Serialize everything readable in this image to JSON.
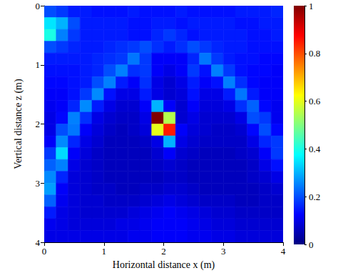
{
  "chart_data": {
    "type": "heatmap",
    "x_label": "Horizontal distance x (m)",
    "y_label": "Vertical distance z (m)",
    "x": [
      0.1,
      0.3,
      0.5,
      0.7,
      0.9,
      1.1,
      1.3,
      1.5,
      1.7,
      1.9,
      2.1,
      2.3,
      2.5,
      2.7,
      2.9,
      3.1,
      3.3,
      3.5,
      3.7,
      3.9
    ],
    "y": [
      0.1,
      0.3,
      0.5,
      0.7,
      0.9,
      1.1,
      1.3,
      1.5,
      1.7,
      1.9,
      2.1,
      2.3,
      2.5,
      2.7,
      2.9,
      3.1,
      3.3,
      3.5,
      3.7,
      3.9
    ],
    "values": [
      [
        0.2,
        0.18,
        0.15,
        0.15,
        0.14,
        0.14,
        0.14,
        0.15,
        0.14,
        0.14,
        0.14,
        0.15,
        0.14,
        0.14,
        0.14,
        0.14,
        0.15,
        0.15,
        0.15,
        0.16
      ],
      [
        0.35,
        0.3,
        0.2,
        0.15,
        0.15,
        0.15,
        0.15,
        0.14,
        0.14,
        0.15,
        0.15,
        0.14,
        0.15,
        0.15,
        0.15,
        0.15,
        0.14,
        0.14,
        0.15,
        0.15
      ],
      [
        0.4,
        0.25,
        0.18,
        0.15,
        0.15,
        0.15,
        0.15,
        0.14,
        0.14,
        0.16,
        0.18,
        0.16,
        0.14,
        0.15,
        0.15,
        0.15,
        0.15,
        0.14,
        0.14,
        0.15
      ],
      [
        0.2,
        0.18,
        0.16,
        0.15,
        0.15,
        0.16,
        0.17,
        0.18,
        0.2,
        0.17,
        0.15,
        0.17,
        0.2,
        0.18,
        0.16,
        0.15,
        0.15,
        0.14,
        0.14,
        0.14
      ],
      [
        0.15,
        0.15,
        0.15,
        0.15,
        0.16,
        0.17,
        0.18,
        0.24,
        0.18,
        0.12,
        0.12,
        0.12,
        0.16,
        0.24,
        0.18,
        0.15,
        0.14,
        0.14,
        0.13,
        0.13
      ],
      [
        0.14,
        0.14,
        0.14,
        0.15,
        0.16,
        0.2,
        0.25,
        0.17,
        0.18,
        0.12,
        0.1,
        0.12,
        0.18,
        0.14,
        0.25,
        0.18,
        0.14,
        0.13,
        0.13,
        0.12
      ],
      [
        0.13,
        0.13,
        0.14,
        0.15,
        0.2,
        0.25,
        0.15,
        0.12,
        0.17,
        0.1,
        0.08,
        0.1,
        0.15,
        0.12,
        0.14,
        0.25,
        0.17,
        0.13,
        0.12,
        0.12
      ],
      [
        0.12,
        0.12,
        0.14,
        0.18,
        0.26,
        0.14,
        0.1,
        0.1,
        0.15,
        0.1,
        0.08,
        0.09,
        0.14,
        0.1,
        0.1,
        0.15,
        0.24,
        0.15,
        0.12,
        0.12
      ],
      [
        0.11,
        0.12,
        0.16,
        0.26,
        0.15,
        0.1,
        0.08,
        0.08,
        0.12,
        0.3,
        0.12,
        0.08,
        0.12,
        0.09,
        0.09,
        0.1,
        0.17,
        0.22,
        0.13,
        0.11
      ],
      [
        0.1,
        0.13,
        0.25,
        0.17,
        0.1,
        0.08,
        0.07,
        0.07,
        0.1,
        1.0,
        0.55,
        0.08,
        0.1,
        0.08,
        0.08,
        0.08,
        0.1,
        0.2,
        0.18,
        0.11
      ],
      [
        0.1,
        0.2,
        0.24,
        0.12,
        0.09,
        0.07,
        0.06,
        0.07,
        0.09,
        0.6,
        0.85,
        0.12,
        0.09,
        0.08,
        0.07,
        0.07,
        0.08,
        0.13,
        0.2,
        0.13
      ],
      [
        0.12,
        0.26,
        0.16,
        0.1,
        0.08,
        0.06,
        0.06,
        0.06,
        0.07,
        0.1,
        0.3,
        0.1,
        0.08,
        0.07,
        0.07,
        0.07,
        0.07,
        0.1,
        0.16,
        0.18
      ],
      [
        0.18,
        0.34,
        0.12,
        0.09,
        0.07,
        0.06,
        0.06,
        0.06,
        0.06,
        0.08,
        0.12,
        0.08,
        0.07,
        0.06,
        0.06,
        0.06,
        0.07,
        0.08,
        0.12,
        0.18
      ],
      [
        0.22,
        0.25,
        0.1,
        0.08,
        0.07,
        0.06,
        0.06,
        0.06,
        0.06,
        0.07,
        0.08,
        0.07,
        0.06,
        0.06,
        0.06,
        0.06,
        0.06,
        0.07,
        0.1,
        0.14
      ],
      [
        0.26,
        0.16,
        0.09,
        0.08,
        0.07,
        0.06,
        0.06,
        0.06,
        0.06,
        0.06,
        0.07,
        0.07,
        0.06,
        0.06,
        0.06,
        0.06,
        0.06,
        0.07,
        0.08,
        0.1
      ],
      [
        0.28,
        0.12,
        0.09,
        0.08,
        0.07,
        0.07,
        0.06,
        0.06,
        0.07,
        0.07,
        0.08,
        0.08,
        0.07,
        0.06,
        0.06,
        0.06,
        0.06,
        0.06,
        0.07,
        0.08
      ],
      [
        0.22,
        0.11,
        0.09,
        0.08,
        0.08,
        0.07,
        0.07,
        0.07,
        0.08,
        0.09,
        0.1,
        0.09,
        0.08,
        0.07,
        0.07,
        0.07,
        0.06,
        0.06,
        0.07,
        0.07
      ],
      [
        0.15,
        0.1,
        0.09,
        0.08,
        0.08,
        0.08,
        0.08,
        0.09,
        0.1,
        0.11,
        0.12,
        0.11,
        0.1,
        0.09,
        0.08,
        0.08,
        0.07,
        0.07,
        0.07,
        0.07
      ],
      [
        0.11,
        0.1,
        0.09,
        0.09,
        0.09,
        0.09,
        0.1,
        0.1,
        0.11,
        0.12,
        0.12,
        0.12,
        0.11,
        0.1,
        0.09,
        0.09,
        0.08,
        0.08,
        0.08,
        0.08
      ],
      [
        0.1,
        0.1,
        0.1,
        0.1,
        0.1,
        0.1,
        0.1,
        0.11,
        0.11,
        0.12,
        0.12,
        0.12,
        0.11,
        0.11,
        0.1,
        0.1,
        0.09,
        0.09,
        0.09,
        0.09
      ]
    ],
    "xlim": [
      0,
      4
    ],
    "xticks": [
      0,
      1,
      2,
      3,
      4
    ],
    "ylim": [
      4,
      0
    ],
    "yticks": [
      0,
      1,
      2,
      3,
      4
    ],
    "colorbar": {
      "range": [
        0,
        1
      ],
      "ticks": [
        0,
        0.2,
        0.4,
        0.6,
        0.8,
        1
      ]
    }
  }
}
